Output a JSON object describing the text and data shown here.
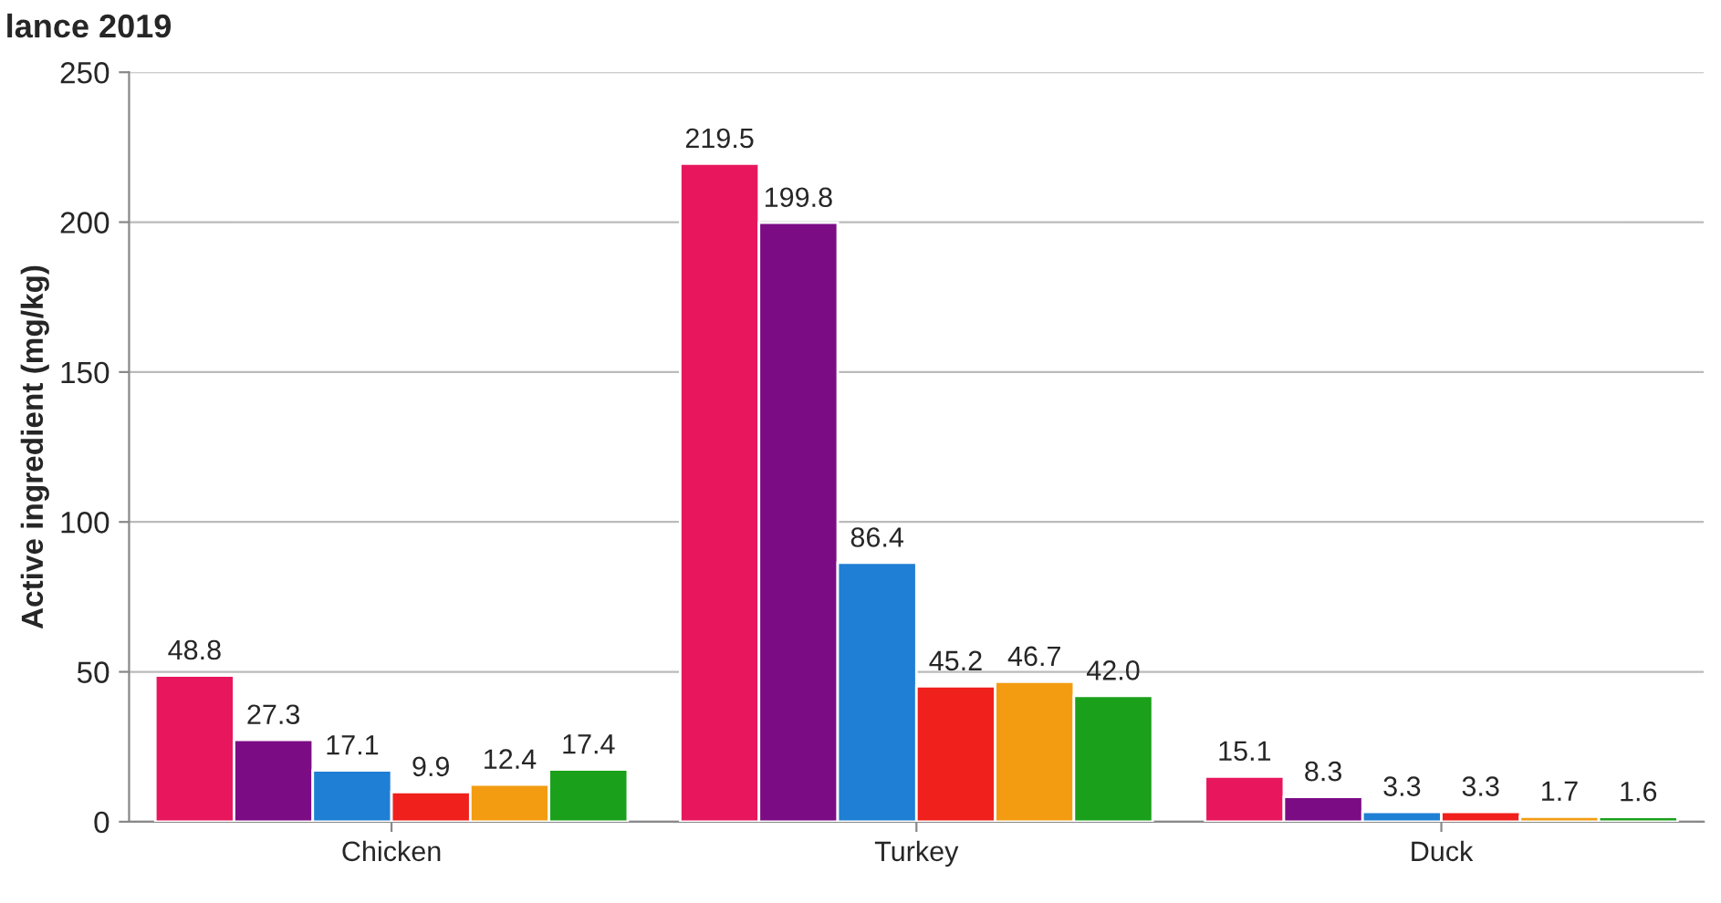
{
  "chart_data": {
    "type": "bar",
    "title": "lance 2019",
    "ylabel": "Active ingredient (mg/kg)",
    "categories": [
      "Chicken",
      "Turkey",
      "Duck"
    ],
    "series": [
      {
        "color": "#e8175d",
        "values": [
          48.8,
          219.5,
          15.1
        ],
        "value_labels": [
          "48.8",
          "219.5",
          "15.1"
        ]
      },
      {
        "color": "#7b0c84",
        "values": [
          27.3,
          199.8,
          8.3
        ],
        "value_labels": [
          "27.3",
          "199.8",
          "8.3"
        ]
      },
      {
        "color": "#1f7fd4",
        "values": [
          17.1,
          86.4,
          3.3
        ],
        "value_labels": [
          "17.1",
          "86.4",
          "3.3"
        ]
      },
      {
        "color": "#f0201c",
        "values": [
          9.9,
          45.2,
          3.3
        ],
        "value_labels": [
          "9.9",
          "45.2",
          "3.3"
        ]
      },
      {
        "color": "#f39c12",
        "values": [
          12.4,
          46.7,
          1.7
        ],
        "value_labels": [
          "12.4",
          "46.7",
          "1.7"
        ]
      },
      {
        "color": "#1aa01a",
        "values": [
          17.4,
          42.0,
          1.6
        ],
        "value_labels": [
          "17.4",
          "42.0",
          "1.6"
        ]
      }
    ],
    "ylim": [
      0,
      250
    ],
    "yticks": [
      0,
      50,
      100,
      150,
      200,
      250
    ],
    "grid": "y",
    "legend": false
  }
}
